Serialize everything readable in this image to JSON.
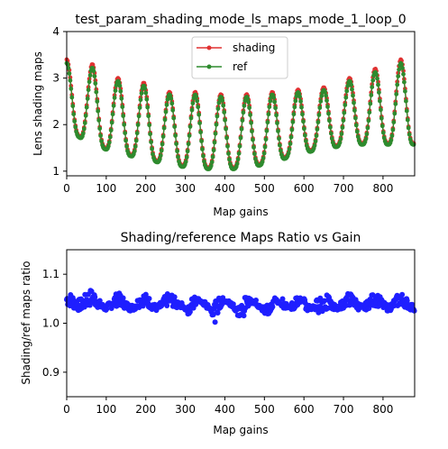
{
  "chart_data": [
    {
      "type": "line",
      "title": "test_param_shading_mode_ls_maps_mode_1_loop_0",
      "xlabel": "Map gains",
      "ylabel": "Lens shading maps",
      "xlim": [
        0,
        880
      ],
      "ylim": [
        0.9,
        4.0
      ],
      "x_ticks": [
        "0",
        "100",
        "200",
        "300",
        "400",
        "500",
        "600",
        "700",
        "800"
      ],
      "y_ticks": [
        "1",
        "2",
        "3",
        "4"
      ],
      "legend_position": "upper center",
      "grid": false,
      "series": [
        {
          "name": "shading",
          "color": "#e03131",
          "marker": "dot"
        },
        {
          "name": "ref",
          "color": "#2e8b2e",
          "marker": "dot"
        }
      ],
      "approx_samples": {
        "x": [
          0,
          15,
          30,
          45,
          60,
          75,
          90,
          105,
          120,
          135,
          150,
          165,
          180,
          195,
          210,
          225,
          240,
          255,
          270,
          285,
          300,
          315,
          330,
          345,
          360,
          375,
          390,
          405,
          420,
          435,
          450,
          465,
          480,
          495,
          510,
          525,
          540,
          555,
          570,
          585,
          600,
          615,
          630,
          645,
          660,
          675,
          690,
          705,
          720,
          735,
          750,
          765,
          780,
          795,
          810,
          825,
          840,
          855,
          870,
          880
        ],
        "period_gains": 65,
        "peaks_shading": [
          3.4,
          3.3,
          3.0,
          2.9,
          2.7,
          2.7,
          2.65,
          2.65,
          2.7,
          2.75,
          2.8,
          3.0,
          3.2,
          3.4
        ],
        "troughs_shading": [
          1.9,
          1.6,
          1.4,
          1.3,
          1.15,
          1.1,
          1.05,
          1.1,
          1.2,
          1.4,
          1.5,
          1.6,
          1.6
        ]
      }
    },
    {
      "type": "scatter",
      "title": "Shading/reference Maps Ratio vs Gain",
      "xlabel": "Map gains",
      "ylabel": "Shading/ref maps ratio",
      "xlim": [
        0,
        880
      ],
      "ylim": [
        0.85,
        1.15
      ],
      "x_ticks": [
        "0",
        "100",
        "200",
        "300",
        "400",
        "500",
        "600",
        "700",
        "800"
      ],
      "y_ticks": [
        "0.9",
        "1.0",
        "1.1"
      ],
      "grid": false,
      "series": [
        {
          "color": "#1f1fff",
          "marker": "dot"
        }
      ],
      "approx_samples": {
        "upper_band_level": 1.05,
        "lower_band_level": 1.035,
        "deep_troughs_x": [
          310,
          375,
          440,
          505,
          570
        ],
        "deep_troughs_y": [
          1.01,
          1.0,
          0.99,
          1.0,
          1.02
        ]
      }
    }
  ]
}
